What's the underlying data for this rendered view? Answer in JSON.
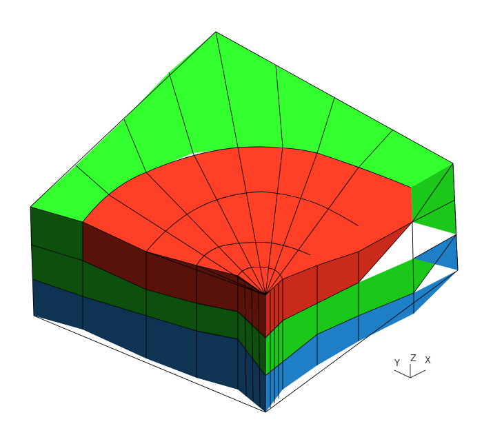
{
  "mesh": {
    "colors": {
      "top_green": "#33ff2e",
      "red_top": "#ff4027",
      "red_side_left": "#58120a",
      "red_side_right": "#c92a19",
      "green_side_left": "#0d4f0d",
      "green_side_right": "#1bc81a",
      "blue_side_left": "#0f3352",
      "blue_side_right": "#1e7fc6"
    }
  },
  "axes": {
    "y_label": "Y",
    "z_label": "Z",
    "x_label": "X"
  }
}
